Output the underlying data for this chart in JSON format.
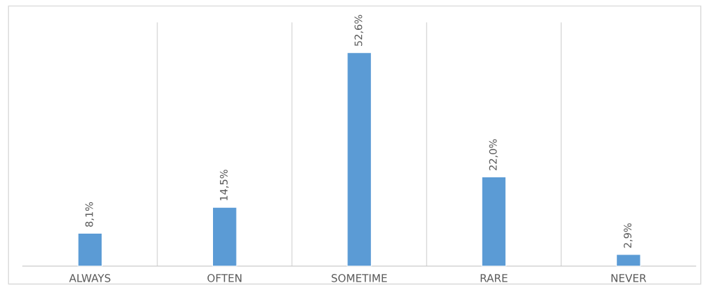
{
  "chart_data": {
    "type": "bar",
    "categories": [
      "ALWAYS",
      "OFTEN",
      "SOMETIME",
      "RARE",
      "NEVER"
    ],
    "values": [
      8.1,
      14.5,
      52.6,
      22.0,
      2.9
    ],
    "value_labels": [
      "8,1%",
      "14,5%",
      "52,6%",
      "22,0%",
      "2,9%"
    ],
    "color": "#5b9bd5",
    "ylim": [
      0,
      60
    ],
    "tick_labels": "x",
    "grid": "x",
    "legend": false
  }
}
